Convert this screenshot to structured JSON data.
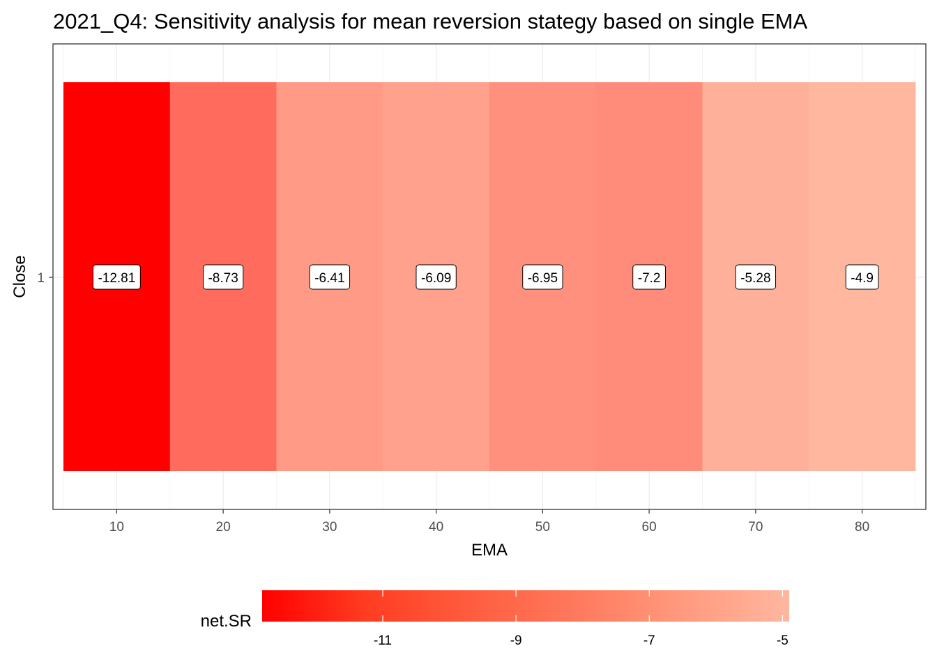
{
  "chart_data": {
    "type": "heatmap",
    "title": "2021_Q4: Sensitivity analysis for mean reversion stategy based on single EMA",
    "xlabel": "EMA",
    "ylabel": "Close",
    "x": [
      10,
      20,
      30,
      40,
      50,
      60,
      70,
      80
    ],
    "y_categories": [
      "1"
    ],
    "values": [
      -12.81,
      -8.73,
      -6.41,
      -6.09,
      -6.95,
      -7.2,
      -5.28,
      -4.9
    ],
    "value_labels": [
      "-12.81",
      "-8.73",
      "-6.41",
      "-6.09",
      "-6.95",
      "-7.2",
      "-5.28",
      "-4.9"
    ],
    "xlim": [
      5,
      85
    ],
    "x_ticks": [
      10,
      20,
      30,
      40,
      50,
      60,
      70,
      80
    ],
    "y_ticks": [
      "1"
    ],
    "grid": true,
    "legend": {
      "title": "net.SR",
      "position": "bottom",
      "ticks": [
        -11,
        -9,
        -7,
        -5
      ],
      "tick_labels": [
        "-11",
        "-9",
        "-7",
        "-5"
      ],
      "range": [
        -12.81,
        -4.9
      ],
      "color_low": "#ff0000",
      "color_high": "#ffb7a0"
    }
  }
}
